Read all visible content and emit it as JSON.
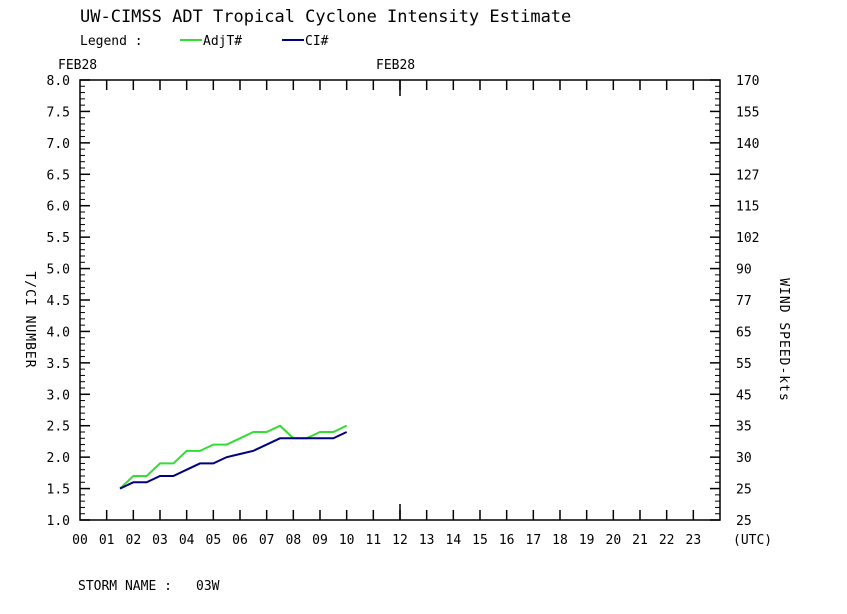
{
  "chart_data": {
    "type": "line",
    "title": "UW-CIMSS ADT Tropical Cyclone Intensity Estimate",
    "legend_label": "Legend :",
    "legend_placement": "top-left",
    "top_date_labels": [
      "FEB28",
      "FEB28"
    ],
    "ylabel": "T/CI NUMBER",
    "y2label": "WIND SPEED-kts",
    "xunit_label": "(UTC)",
    "ylim": [
      1.0,
      8.0
    ],
    "xlim": [
      0,
      24
    ],
    "yticks": [
      "1.0",
      "1.5",
      "2.0",
      "2.5",
      "3.0",
      "3.5",
      "4.0",
      "4.5",
      "5.0",
      "5.5",
      "6.0",
      "6.5",
      "7.0",
      "7.5",
      "8.0"
    ],
    "y2ticks": [
      "25",
      "25",
      "30",
      "35",
      "45",
      "55",
      "65",
      "77",
      "90",
      "102",
      "115",
      "127",
      "140",
      "155",
      "170"
    ],
    "xticks": [
      "00",
      "01",
      "02",
      "03",
      "04",
      "05",
      "06",
      "07",
      "08",
      "09",
      "10",
      "11",
      "12",
      "13",
      "14",
      "15",
      "16",
      "17",
      "18",
      "19",
      "20",
      "21",
      "22",
      "23"
    ],
    "series": [
      {
        "name": "AdjT#",
        "color": "#33dd33",
        "x": [
          1.5,
          2.0,
          2.5,
          3.0,
          3.5,
          4.0,
          4.5,
          5.0,
          5.5,
          6.0,
          6.5,
          7.0,
          7.5,
          8.0,
          8.5,
          9.0,
          9.5,
          10.0
        ],
        "y": [
          1.5,
          1.7,
          1.7,
          1.9,
          1.9,
          2.1,
          2.1,
          2.2,
          2.2,
          2.3,
          2.4,
          2.4,
          2.5,
          2.3,
          2.3,
          2.4,
          2.4,
          2.5
        ]
      },
      {
        "name": "CI#",
        "color": "#000080",
        "x": [
          1.5,
          2.0,
          2.5,
          3.0,
          3.5,
          4.0,
          4.5,
          5.0,
          5.5,
          6.0,
          6.5,
          7.0,
          7.5,
          8.0,
          8.5,
          9.0,
          9.5,
          10.0
        ],
        "y": [
          1.5,
          1.6,
          1.6,
          1.7,
          1.7,
          1.8,
          1.9,
          1.9,
          2.0,
          2.05,
          2.1,
          2.2,
          2.3,
          2.3,
          2.3,
          2.3,
          2.3,
          2.4
        ]
      }
    ],
    "grid": false
  },
  "storm": {
    "label": "STORM NAME :",
    "name": "03W"
  }
}
